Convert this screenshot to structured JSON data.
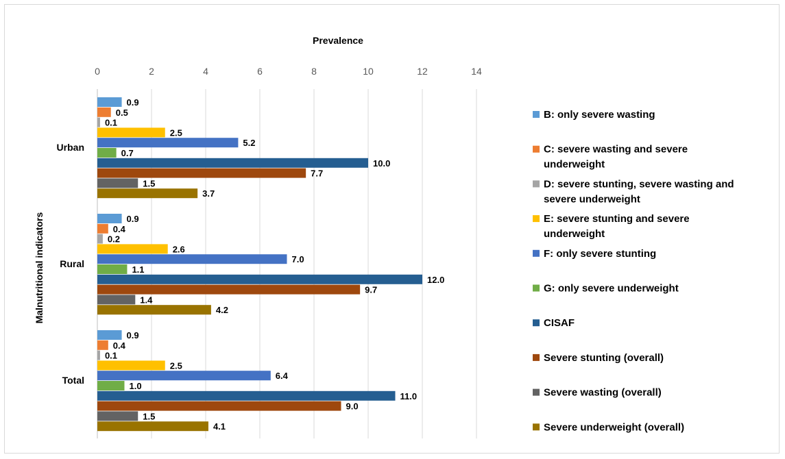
{
  "chart_data": {
    "type": "bar",
    "orientation": "horizontal",
    "title": "",
    "xlabel": "Prevalence",
    "ylabel": "Malnutritional indicators",
    "xlim": [
      0,
      14
    ],
    "x_ticks": [
      "0",
      "2",
      "4",
      "6",
      "8",
      "10",
      "12",
      "14"
    ],
    "x_axis_position": "top",
    "grid": true,
    "legend_position": "right",
    "categories": [
      "Urban",
      "Rural",
      "Total"
    ],
    "series": [
      {
        "name": "B: only severe wasting",
        "color": "#5b9bd5",
        "values": [
          0.9,
          0.9,
          0.9
        ],
        "labels": [
          "0.9",
          "0.9",
          "0.9"
        ]
      },
      {
        "name": "C: severe wasting and severe underweight",
        "color": "#ed7d31",
        "values": [
          0.5,
          0.4,
          0.4
        ],
        "labels": [
          "0.5",
          "0.4",
          "0.4"
        ]
      },
      {
        "name": "D: severe stunting, severe wasting and severe underweight",
        "color": "#a5a5a5",
        "values": [
          0.1,
          0.2,
          0.1
        ],
        "labels": [
          "0.1",
          "0.2",
          "0.1"
        ]
      },
      {
        "name": "E: severe stunting and severe underweight",
        "color": "#ffc000",
        "values": [
          2.5,
          2.6,
          2.5
        ],
        "labels": [
          "2.5",
          "2.6",
          "2.5"
        ]
      },
      {
        "name": "F: only severe stunting",
        "color": "#4472c4",
        "values": [
          5.2,
          7.0,
          6.4
        ],
        "labels": [
          "5.2",
          "7.0",
          "6.4"
        ]
      },
      {
        "name": "G: only severe underweight",
        "color": "#70ad47",
        "values": [
          0.7,
          1.1,
          1.0
        ],
        "labels": [
          "0.7",
          "1.1",
          "1.0"
        ]
      },
      {
        "name": "CISAF",
        "color": "#255e91",
        "values": [
          10.0,
          12.0,
          11.0
        ],
        "labels": [
          "10.0",
          "12.0",
          "11.0"
        ]
      },
      {
        "name": "Severe stunting (overall)",
        "color": "#9e480e",
        "values": [
          7.7,
          9.7,
          9.0
        ],
        "labels": [
          "7.7",
          "9.7",
          "9.0"
        ]
      },
      {
        "name": "Severe wasting (overall)",
        "color": "#636363",
        "values": [
          1.5,
          1.4,
          1.5
        ],
        "labels": [
          "1.5",
          "1.4",
          "1.5"
        ]
      },
      {
        "name": "Severe underweight (overall)",
        "color": "#997300",
        "values": [
          3.7,
          4.2,
          4.1
        ],
        "labels": [
          "3.7",
          "4.2",
          "4.1"
        ]
      }
    ],
    "legend_lines": [
      [
        "B: only severe wasting"
      ],
      [
        "C: severe wasting and severe",
        "underweight"
      ],
      [
        "D: severe stunting, severe wasting and",
        "severe underweight"
      ],
      [
        "E: severe stunting and severe",
        "underweight"
      ],
      [
        "F: only severe stunting"
      ],
      [
        "G: only severe underweight"
      ],
      [
        "CISAF"
      ],
      [
        "Severe stunting (overall)"
      ],
      [
        "Severe wasting (overall)"
      ],
      [
        "Severe underweight (overall)"
      ]
    ]
  }
}
